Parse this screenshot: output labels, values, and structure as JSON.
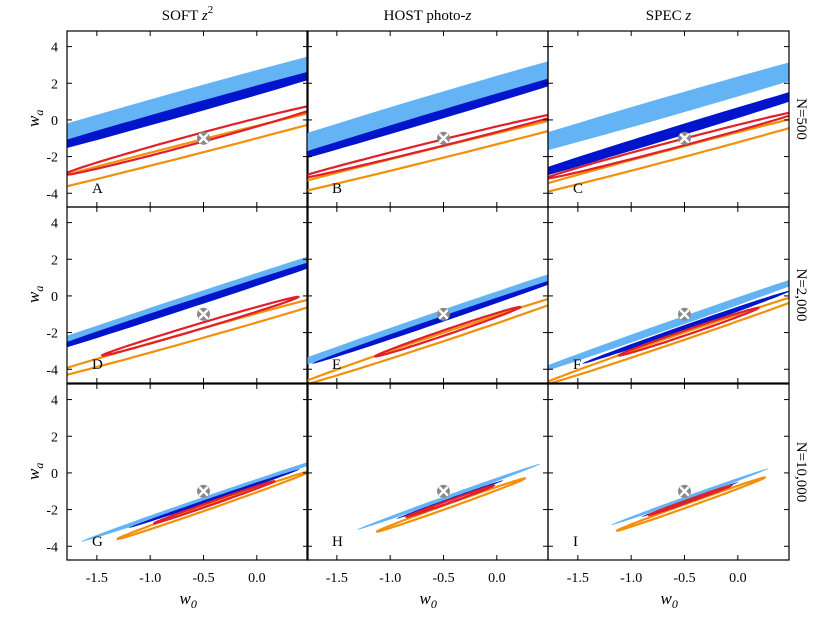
{
  "chart_data": {
    "type": "contour",
    "title": "",
    "columns": [
      {
        "title_main": "SOFT ",
        "title_math": "z",
        "title_sup": "2"
      },
      {
        "title_main": "HOST photo-",
        "title_math": "z",
        "title_sup": ""
      },
      {
        "title_main": "SPEC ",
        "title_math": "z",
        "title_sup": ""
      }
    ],
    "rows": [
      "N=500",
      "N=2,000",
      "N=10,000"
    ],
    "xlabel": {
      "main": "w",
      "sub": "0"
    },
    "ylabel": {
      "main": "w",
      "sub": "a"
    },
    "xlim": [
      -1.78,
      0.48
    ],
    "ylim": [
      -4.75,
      4.85
    ],
    "xticks": [
      -1.5,
      -1.0,
      -0.5,
      0.0
    ],
    "xtick_labels": [
      "-1.5",
      "-1.0",
      "-0.5",
      "0.0"
    ],
    "yticks": [
      4,
      2,
      0,
      -2,
      -4
    ],
    "ytick_labels": [
      "4",
      "2",
      "0",
      "-2",
      "-4"
    ],
    "fiducial": {
      "w0": -0.5,
      "wa": -1.0
    },
    "colors": {
      "outer_fill": "#64b4f5",
      "inner_fill": "#0014cc",
      "orange_contour": "#f2900a",
      "red_contour": "#e0202a",
      "marker": "#ffffff"
    },
    "panels": [
      {
        "letter": "A",
        "blue_outer": {
          "cx": -0.72,
          "cy": 1.0,
          "a": 4.3,
          "b": 0.35,
          "tilt": -1.65
        },
        "blue_inner": {
          "cx": -0.68,
          "cy": 0.5,
          "a": 3.3,
          "b": 0.17,
          "tilt": -1.65
        },
        "orange": {
          "cx": -0.7,
          "cy": -1.7,
          "a": 3.45,
          "b": 0.24,
          "tilt": -1.5
        },
        "red": {
          "cx": -0.58,
          "cy": -1.05,
          "a": 1.95,
          "b": 0.16,
          "tilt": -1.6
        }
      },
      {
        "letter": "B",
        "blue_outer": {
          "cx": -0.55,
          "cy": 0.9,
          "a": 4.4,
          "b": 0.33,
          "tilt": -1.75
        },
        "blue_inner": {
          "cx": -0.52,
          "cy": 0.3,
          "a": 3.4,
          "b": 0.14,
          "tilt": -1.75
        },
        "orange": {
          "cx": -0.68,
          "cy": -2.0,
          "a": 3.3,
          "b": 0.22,
          "tilt": -1.45
        },
        "red": {
          "cx": -0.62,
          "cy": -1.4,
          "a": 1.85,
          "b": 0.12,
          "tilt": -1.45
        }
      },
      {
        "letter": "C",
        "blue_outer": {
          "cx": -0.55,
          "cy": 0.9,
          "a": 4.4,
          "b": 0.33,
          "tilt": -1.7
        },
        "blue_inner": {
          "cx": -0.5,
          "cy": -0.5,
          "a": 3.4,
          "b": 0.17,
          "tilt": -1.8
        },
        "orange": {
          "cx": -0.62,
          "cy": -1.9,
          "a": 2.9,
          "b": 0.19,
          "tilt": -1.55
        },
        "red": {
          "cx": -0.6,
          "cy": -1.35,
          "a": 1.85,
          "b": 0.12,
          "tilt": -1.55
        }
      },
      {
        "letter": "D",
        "blue_outer": {
          "cx": -0.65,
          "cy": -0.3,
          "a": 4.6,
          "b": 0.17,
          "tilt": -1.92
        },
        "blue_inner": {
          "cx": -0.6,
          "cy": -0.4,
          "a": 3.2,
          "b": 0.11,
          "tilt": -1.92
        },
        "orange": {
          "cx": -0.58,
          "cy": -2.15,
          "a": 2.85,
          "b": 0.16,
          "tilt": -1.65
        },
        "red": {
          "cx": -0.53,
          "cy": -1.65,
          "a": 1.6,
          "b": 0.09,
          "tilt": -1.75
        }
      },
      {
        "letter": "E",
        "blue_outer": {
          "cx": -0.5,
          "cy": -1.0,
          "a": 4.0,
          "b": 0.13,
          "tilt": -2.0
        },
        "blue_inner": {
          "cx": -0.48,
          "cy": -1.2,
          "a": 2.5,
          "b": 0.08,
          "tilt": -2.0
        },
        "orange": {
          "cx": -0.48,
          "cy": -2.2,
          "a": 2.75,
          "b": 0.12,
          "tilt": -1.95
        },
        "red": {
          "cx": -0.46,
          "cy": -1.95,
          "a": 1.35,
          "b": 0.075,
          "tilt": -2.0
        }
      },
      {
        "letter": "F",
        "blue_outer": {
          "cx": -0.52,
          "cy": -1.35,
          "a": 3.4,
          "b": 0.11,
          "tilt": -2.05
        },
        "blue_inner": {
          "cx": -0.48,
          "cy": -1.7,
          "a": 2.0,
          "b": 0.075,
          "tilt": -2.05
        },
        "orange": {
          "cx": -0.48,
          "cy": -2.15,
          "a": 2.75,
          "b": 0.1,
          "tilt": -2.0
        },
        "red": {
          "cx": -0.46,
          "cy": -1.95,
          "a": 1.3,
          "b": 0.07,
          "tilt": -2.0
        }
      },
      {
        "letter": "G",
        "blue_outer": {
          "cx": -0.42,
          "cy": -1.3,
          "a": 2.45,
          "b": 0.075,
          "tilt": -2.0
        },
        "blue_inner": {
          "cx": -0.4,
          "cy": -1.4,
          "a": 1.6,
          "b": 0.05,
          "tilt": -2.0
        },
        "orange": {
          "cx": -0.4,
          "cy": -1.75,
          "a": 1.85,
          "b": 0.065,
          "tilt": -2.05
        },
        "red": {
          "cx": -0.4,
          "cy": -1.6,
          "a": 1.15,
          "b": 0.045,
          "tilt": -2.05
        }
      },
      {
        "letter": "H",
        "blue_outer": {
          "cx": -0.45,
          "cy": -1.3,
          "a": 1.8,
          "b": 0.055,
          "tilt": -2.1
        },
        "blue_inner": {
          "cx": -0.44,
          "cy": -1.45,
          "a": 1.05,
          "b": 0.035,
          "tilt": -2.1
        },
        "orange": {
          "cx": -0.43,
          "cy": -1.75,
          "a": 1.45,
          "b": 0.055,
          "tilt": -2.1
        },
        "red": {
          "cx": -0.44,
          "cy": -1.55,
          "a": 0.85,
          "b": 0.035,
          "tilt": -2.1
        }
      },
      {
        "letter": "I",
        "blue_outer": {
          "cx": -0.45,
          "cy": -1.3,
          "a": 1.55,
          "b": 0.05,
          "tilt": -2.1
        },
        "blue_inner": {
          "cx": -0.45,
          "cy": -1.45,
          "a": 0.95,
          "b": 0.032,
          "tilt": -2.1
        },
        "orange": {
          "cx": -0.44,
          "cy": -1.7,
          "a": 1.45,
          "b": 0.05,
          "tilt": -2.1
        },
        "red": {
          "cx": -0.45,
          "cy": -1.5,
          "a": 0.8,
          "b": 0.032,
          "tilt": -2.1
        }
      }
    ]
  }
}
